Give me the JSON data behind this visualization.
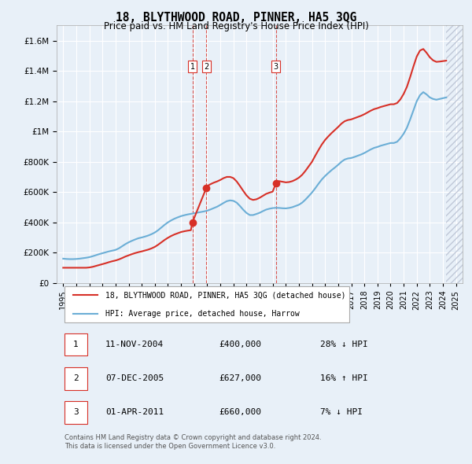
{
  "title": "18, BLYTHWOOD ROAD, PINNER, HA5 3QG",
  "subtitle": "Price paid vs. HM Land Registry's House Price Index (HPI)",
  "footer": "Contains HM Land Registry data © Crown copyright and database right 2024.\nThis data is licensed under the Open Government Licence v3.0.",
  "legend_line1": "18, BLYTHWOOD ROAD, PINNER, HA5 3QG (detached house)",
  "legend_line2": "HPI: Average price, detached house, Harrow",
  "transactions": [
    {
      "num": 1,
      "date": "11-NOV-2004",
      "price": 400000,
      "hpi_diff": "28% ↓ HPI",
      "year": 2004.87
    },
    {
      "num": 2,
      "date": "07-DEC-2005",
      "price": 627000,
      "hpi_diff": "16% ↑ HPI",
      "year": 2005.93
    },
    {
      "num": 3,
      "date": "01-APR-2011",
      "price": 660000,
      "hpi_diff": "7% ↓ HPI",
      "year": 2011.25
    }
  ],
  "hpi_color": "#6baed6",
  "price_color": "#d73027",
  "transaction_marker_color": "#d73027",
  "vline_color": "#d73027",
  "background_color": "#e8f0f8",
  "plot_bg_color": "#e8f0f8",
  "grid_color": "#ffffff",
  "hatch_color": "#d0d8e8",
  "ylim": [
    0,
    1700000
  ],
  "yticks": [
    0,
    200000,
    400000,
    600000,
    800000,
    1000000,
    1200000,
    1400000,
    1600000
  ],
  "xlim_start": 1994.5,
  "xlim_end": 2025.5,
  "hpi_data_x": [
    1995.0,
    1995.25,
    1995.5,
    1995.75,
    1996.0,
    1996.25,
    1996.5,
    1996.75,
    1997.0,
    1997.25,
    1997.5,
    1997.75,
    1998.0,
    1998.25,
    1998.5,
    1998.75,
    1999.0,
    1999.25,
    1999.5,
    1999.75,
    2000.0,
    2000.25,
    2000.5,
    2000.75,
    2001.0,
    2001.25,
    2001.5,
    2001.75,
    2002.0,
    2002.25,
    2002.5,
    2002.75,
    2003.0,
    2003.25,
    2003.5,
    2003.75,
    2004.0,
    2004.25,
    2004.5,
    2004.75,
    2005.0,
    2005.25,
    2005.5,
    2005.75,
    2006.0,
    2006.25,
    2006.5,
    2006.75,
    2007.0,
    2007.25,
    2007.5,
    2007.75,
    2008.0,
    2008.25,
    2008.5,
    2008.75,
    2009.0,
    2009.25,
    2009.5,
    2009.75,
    2010.0,
    2010.25,
    2010.5,
    2010.75,
    2011.0,
    2011.25,
    2011.5,
    2011.75,
    2012.0,
    2012.25,
    2012.5,
    2012.75,
    2013.0,
    2013.25,
    2013.5,
    2013.75,
    2014.0,
    2014.25,
    2014.5,
    2014.75,
    2015.0,
    2015.25,
    2015.5,
    2015.75,
    2016.0,
    2016.25,
    2016.5,
    2016.75,
    2017.0,
    2017.25,
    2017.5,
    2017.75,
    2018.0,
    2018.25,
    2018.5,
    2018.75,
    2019.0,
    2019.25,
    2019.5,
    2019.75,
    2020.0,
    2020.25,
    2020.5,
    2020.75,
    2021.0,
    2021.25,
    2021.5,
    2021.75,
    2022.0,
    2022.25,
    2022.5,
    2022.75,
    2023.0,
    2023.25,
    2023.5,
    2023.75,
    2024.0,
    2024.25
  ],
  "hpi_data_y": [
    160000,
    158000,
    157000,
    157000,
    158000,
    160000,
    163000,
    166000,
    170000,
    176000,
    183000,
    190000,
    196000,
    202000,
    208000,
    213000,
    218000,
    228000,
    242000,
    256000,
    268000,
    278000,
    287000,
    295000,
    300000,
    306000,
    313000,
    322000,
    333000,
    348000,
    366000,
    384000,
    400000,
    413000,
    424000,
    433000,
    441000,
    447000,
    452000,
    456000,
    460000,
    464000,
    468000,
    472000,
    477000,
    485000,
    494000,
    503000,
    515000,
    528000,
    540000,
    545000,
    542000,
    530000,
    508000,
    483000,
    462000,
    448000,
    448000,
    455000,
    463000,
    474000,
    484000,
    490000,
    494000,
    496000,
    495000,
    493000,
    492000,
    495000,
    500000,
    508000,
    516000,
    530000,
    550000,
    573000,
    597000,
    625000,
    655000,
    683000,
    706000,
    726000,
    745000,
    762000,
    780000,
    800000,
    815000,
    822000,
    825000,
    832000,
    840000,
    848000,
    858000,
    870000,
    882000,
    892000,
    898000,
    906000,
    912000,
    918000,
    924000,
    924000,
    932000,
    955000,
    985000,
    1025000,
    1080000,
    1140000,
    1200000,
    1240000,
    1260000,
    1245000,
    1225000,
    1215000,
    1210000,
    1215000,
    1220000,
    1225000
  ],
  "price_data_x": [
    1995.0,
    1995.25,
    1995.5,
    1995.75,
    1996.0,
    1996.25,
    1996.5,
    1996.75,
    1997.0,
    1997.25,
    1997.5,
    1997.75,
    1998.0,
    1998.25,
    1998.5,
    1998.75,
    1999.0,
    1999.25,
    1999.5,
    1999.75,
    2000.0,
    2000.25,
    2000.5,
    2000.75,
    2001.0,
    2001.25,
    2001.5,
    2001.75,
    2002.0,
    2002.25,
    2002.5,
    2002.75,
    2003.0,
    2003.25,
    2003.5,
    2003.75,
    2004.0,
    2004.25,
    2004.5,
    2004.75,
    2004.87,
    2005.93,
    2006.0,
    2006.25,
    2006.5,
    2006.75,
    2007.0,
    2007.25,
    2007.5,
    2007.75,
    2008.0,
    2008.25,
    2008.5,
    2008.75,
    2009.0,
    2009.25,
    2009.5,
    2009.75,
    2010.0,
    2010.25,
    2010.5,
    2010.75,
    2011.0,
    2011.25,
    2011.5,
    2011.75,
    2012.0,
    2012.25,
    2012.5,
    2012.75,
    2013.0,
    2013.25,
    2013.5,
    2013.75,
    2014.0,
    2014.25,
    2014.5,
    2014.75,
    2015.0,
    2015.25,
    2015.5,
    2015.75,
    2016.0,
    2016.25,
    2016.5,
    2016.75,
    2017.0,
    2017.25,
    2017.5,
    2017.75,
    2018.0,
    2018.25,
    2018.5,
    2018.75,
    2019.0,
    2019.25,
    2019.5,
    2019.75,
    2020.0,
    2020.25,
    2020.5,
    2020.75,
    2021.0,
    2021.25,
    2021.5,
    2021.75,
    2022.0,
    2022.25,
    2022.5,
    2022.75,
    2023.0,
    2023.25,
    2023.5,
    2023.75,
    2024.0,
    2024.25
  ],
  "price_data_y": [
    100000,
    100000,
    100000,
    100000,
    100000,
    100000,
    100000,
    100000,
    102000,
    106000,
    112000,
    118000,
    124000,
    130000,
    137000,
    143000,
    148000,
    155000,
    164000,
    174000,
    182000,
    190000,
    197000,
    203000,
    208000,
    214000,
    220000,
    228000,
    238000,
    252000,
    268000,
    284000,
    298000,
    310000,
    320000,
    328000,
    336000,
    341000,
    345000,
    348000,
    400000,
    627000,
    640000,
    652000,
    662000,
    670000,
    680000,
    692000,
    700000,
    700000,
    692000,
    670000,
    640000,
    608000,
    578000,
    556000,
    548000,
    552000,
    562000,
    575000,
    588000,
    596000,
    603000,
    660000,
    672000,
    668000,
    664000,
    666000,
    672000,
    682000,
    695000,
    714000,
    740000,
    770000,
    800000,
    840000,
    878000,
    914000,
    944000,
    968000,
    990000,
    1010000,
    1030000,
    1052000,
    1068000,
    1076000,
    1080000,
    1088000,
    1096000,
    1104000,
    1114000,
    1126000,
    1138000,
    1148000,
    1154000,
    1162000,
    1168000,
    1174000,
    1180000,
    1180000,
    1188000,
    1212000,
    1248000,
    1295000,
    1360000,
    1430000,
    1495000,
    1535000,
    1545000,
    1520000,
    1490000,
    1470000,
    1460000,
    1462000,
    1465000,
    1468000
  ]
}
